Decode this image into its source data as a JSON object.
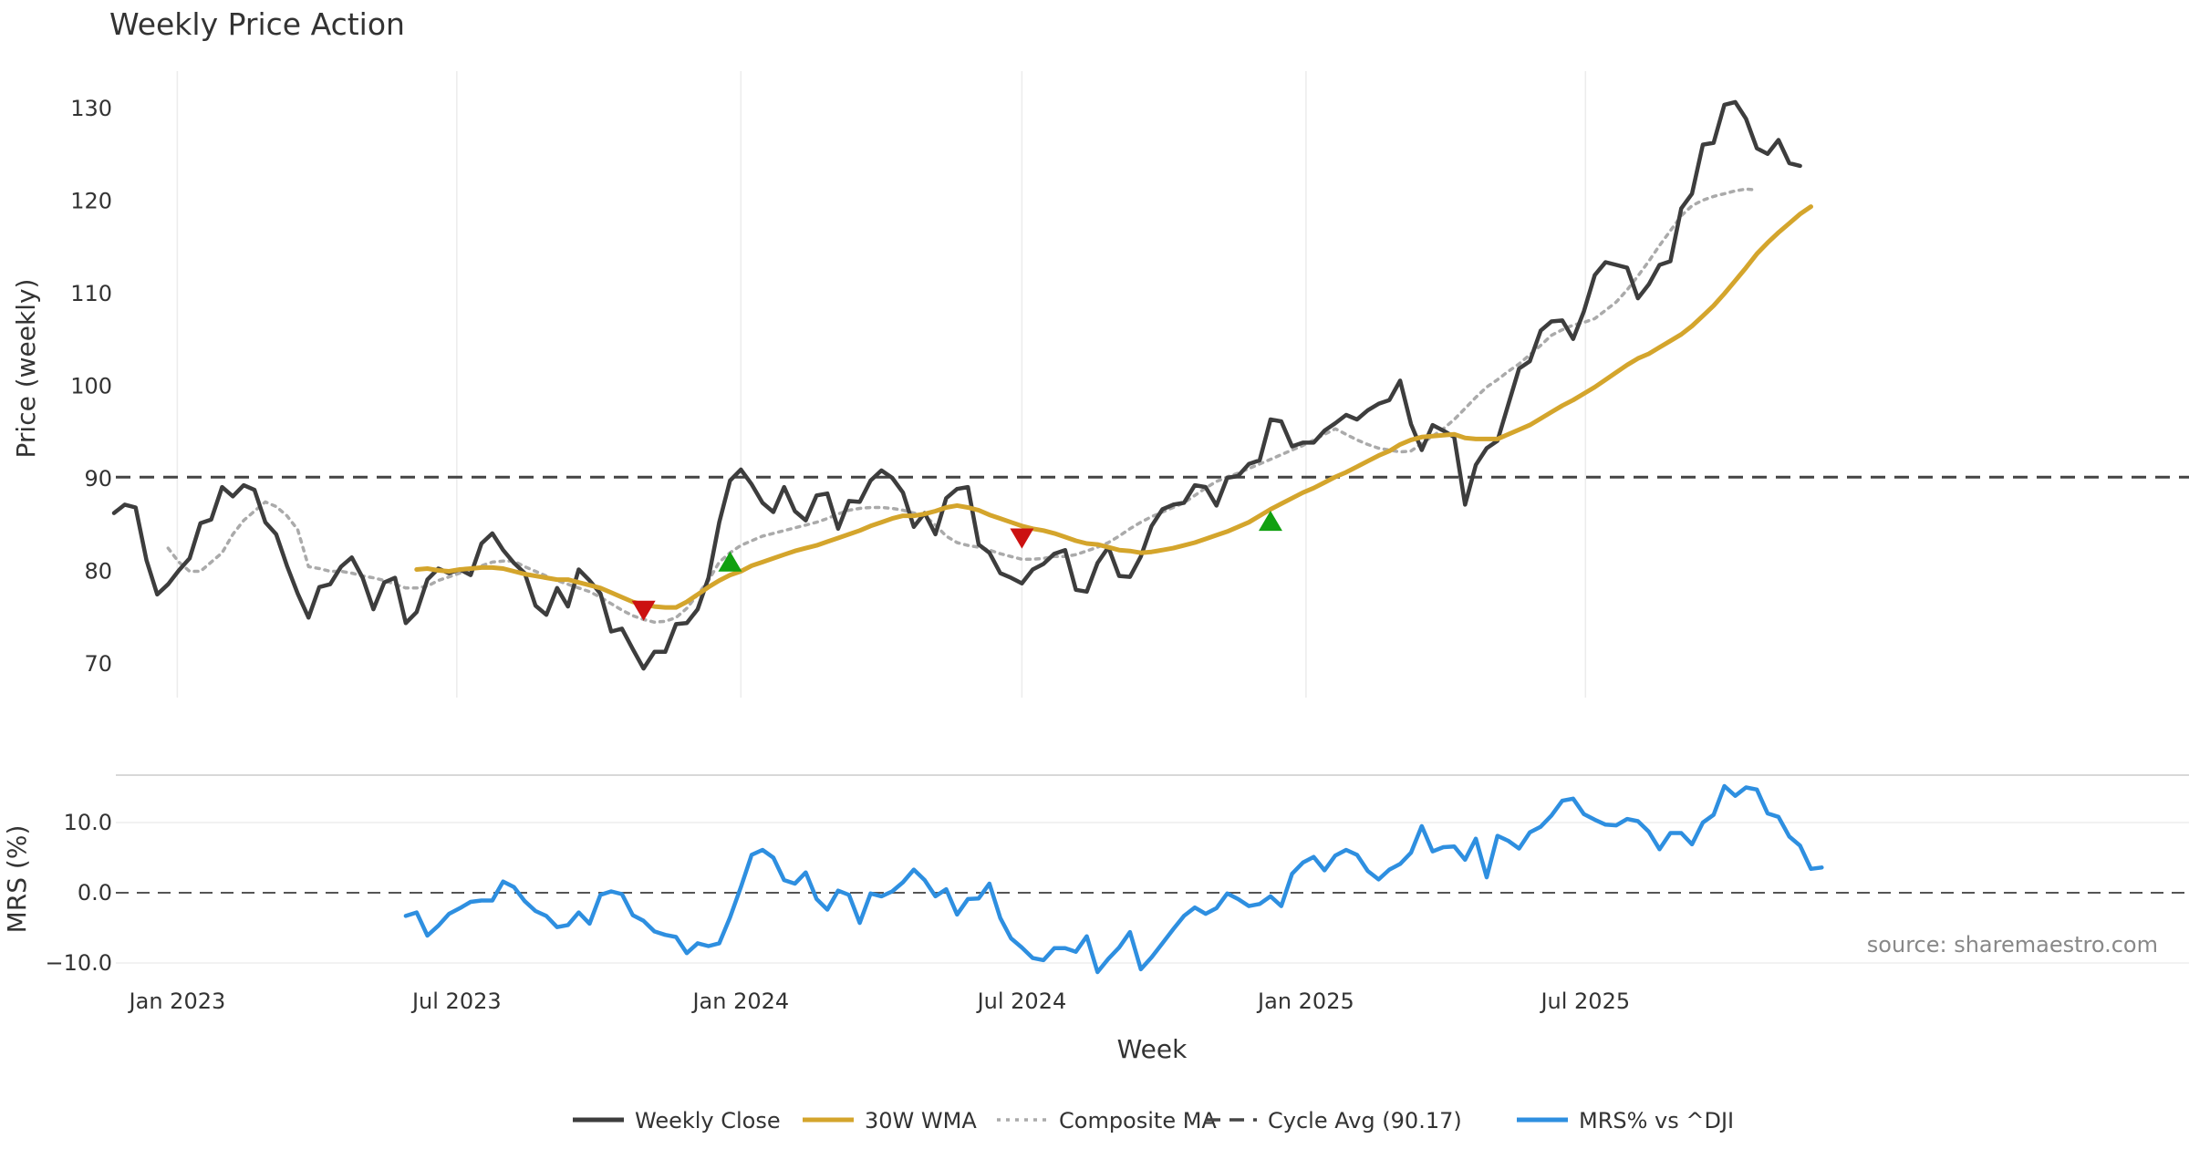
{
  "chart_data": [
    {
      "type": "line",
      "title": "Weekly Price Action",
      "xlabel": "",
      "ylabel": "Price (weekly)",
      "ylim": [
        65,
        134
      ],
      "yticks": [
        "70",
        "80",
        "90",
        "100",
        "110",
        "120",
        "130"
      ],
      "x_tick_labels": [
        "Jan 2023",
        "Jul 2023",
        "Jan 2024",
        "Jul 2024",
        "Jan 2025",
        "Jul 2025"
      ],
      "x_start_week": "2022-11-21",
      "cycle_avg": 90.17,
      "series": [
        {
          "name": "Weekly Close",
          "color": "#3d3d3d",
          "start_index": 0,
          "values": [
            86.3,
            87.2,
            86.9,
            81.2,
            77.5,
            78.6,
            80.1,
            81.4,
            85.2,
            85.6,
            89.1,
            88.1,
            89.3,
            88.8,
            85.3,
            84.0,
            80.6,
            77.6,
            75.0,
            78.3,
            78.6,
            80.5,
            81.5,
            79.3,
            75.9,
            78.8,
            79.3,
            74.4,
            75.6,
            79.1,
            80.3,
            79.8,
            80.2,
            79.6,
            83.0,
            84.1,
            82.3,
            80.9,
            79.8,
            76.3,
            75.3,
            78.2,
            76.2,
            80.2,
            79.0,
            77.6,
            73.5,
            73.8,
            71.6,
            69.5,
            71.3,
            71.3,
            74.3,
            74.4,
            75.9,
            79.3,
            85.3,
            89.8,
            91.0,
            89.4,
            87.4,
            86.4,
            89.1,
            86.5,
            85.5,
            88.2,
            88.4,
            84.6,
            87.6,
            87.5,
            89.8,
            90.9,
            90.1,
            88.5,
            84.8,
            86.3,
            84.0,
            87.9,
            88.9,
            89.1,
            82.9,
            82.0,
            79.8,
            79.3,
            78.7,
            80.2,
            80.8,
            81.9,
            82.3,
            78.0,
            77.8,
            80.9,
            82.6,
            79.5,
            79.4,
            81.6,
            84.9,
            86.7,
            87.2,
            87.4,
            89.3,
            89.1,
            87.1,
            90.1,
            90.3,
            91.6,
            92.0,
            96.4,
            96.2,
            93.5,
            93.9,
            93.9,
            95.2,
            96.0,
            96.9,
            96.4,
            97.4,
            98.1,
            98.5,
            100.6,
            95.9,
            93.1,
            95.8,
            95.2,
            94.5,
            87.2,
            91.5,
            93.3,
            94.1,
            98.0,
            101.9,
            102.7,
            106.0,
            107.0,
            107.1,
            105.1,
            108.1,
            112.0,
            113.4,
            113.1,
            112.8,
            109.5,
            111.0,
            113.1,
            113.5,
            119.2,
            120.8,
            126.1,
            126.3,
            130.4,
            130.7,
            128.9,
            125.7,
            125.1,
            126.6,
            124.1,
            123.8
          ]
        },
        {
          "name": "30W WMA",
          "color": "#d4a52c",
          "start_index": 28,
          "values": [
            80.2,
            80.3,
            80.1,
            80.0,
            80.2,
            80.3,
            80.4,
            80.4,
            80.3,
            80.0,
            79.7,
            79.5,
            79.3,
            79.1,
            79.1,
            78.8,
            78.5,
            78.2,
            77.7,
            77.2,
            76.7,
            76.4,
            76.2,
            76.1,
            76.1,
            76.7,
            77.5,
            78.3,
            79.0,
            79.6,
            80.0,
            80.6,
            81.0,
            81.4,
            81.8,
            82.2,
            82.5,
            82.8,
            83.2,
            83.6,
            84.0,
            84.4,
            84.9,
            85.3,
            85.7,
            86.0,
            86.0,
            86.2,
            86.5,
            86.9,
            87.1,
            86.9,
            86.6,
            86.1,
            85.7,
            85.3,
            84.9,
            84.6,
            84.4,
            84.1,
            83.7,
            83.3,
            83.0,
            82.9,
            82.6,
            82.3,
            82.2,
            82.0,
            82.1,
            82.3,
            82.5,
            82.8,
            83.1,
            83.5,
            83.9,
            84.3,
            84.8,
            85.3,
            86.0,
            86.7,
            87.3,
            87.9,
            88.5,
            89.0,
            89.6,
            90.2,
            90.7,
            91.3,
            91.9,
            92.5,
            93.0,
            93.7,
            94.2,
            94.5,
            94.6,
            94.7,
            94.8,
            94.4,
            94.3,
            94.3,
            94.3,
            94.8,
            95.3,
            95.8,
            96.5,
            97.2,
            97.9,
            98.5,
            99.2,
            99.9,
            100.7,
            101.5,
            102.3,
            103.0,
            103.5,
            104.2,
            104.9,
            105.6,
            106.5,
            107.6,
            108.7,
            110.0,
            111.4,
            112.8,
            114.3,
            115.5,
            116.6,
            117.6,
            118.6,
            119.4
          ]
        },
        {
          "name": "Composite MA",
          "color": "#aaaaaa",
          "start_index": 5,
          "values": [
            82.5,
            81.0,
            80.0,
            80.0,
            81.0,
            82.0,
            84.0,
            85.5,
            86.5,
            87.5,
            87.0,
            86.0,
            84.5,
            80.5,
            80.3,
            80.0,
            80.0,
            79.8,
            79.5,
            79.3,
            79.0,
            78.6,
            78.2,
            78.2,
            78.4,
            79.0,
            79.4,
            79.8,
            80.1,
            80.6,
            81.0,
            81.1,
            81.1,
            80.5,
            80.0,
            79.5,
            79.0,
            78.6,
            78.2,
            77.8,
            77.2,
            76.5,
            75.8,
            75.2,
            74.8,
            74.5,
            74.6,
            75.0,
            76.0,
            77.5,
            79.0,
            81.0,
            82.0,
            82.8,
            83.3,
            83.8,
            84.1,
            84.4,
            84.7,
            85.0,
            85.3,
            85.7,
            86.2,
            86.6,
            86.8,
            86.9,
            86.9,
            86.8,
            86.6,
            86.3,
            86.0,
            85.0,
            83.8,
            83.1,
            82.8,
            82.6,
            82.3,
            81.9,
            81.6,
            81.3,
            81.3,
            81.4,
            81.6,
            81.6,
            81.8,
            82.2,
            82.6,
            83.1,
            83.8,
            84.6,
            85.3,
            85.9,
            86.4,
            86.9,
            87.4,
            88.2,
            89.0,
            89.7,
            90.2,
            90.6,
            91.1,
            91.6,
            92.1,
            92.6,
            93.1,
            93.6,
            94.2,
            94.8,
            95.4,
            94.8,
            94.2,
            93.7,
            93.3,
            93.1,
            92.9,
            93.0,
            93.8,
            94.6,
            95.4,
            96.4,
            97.6,
            98.8,
            99.9,
            100.7,
            101.6,
            102.4,
            103.4,
            104.4,
            105.5,
            106.1,
            106.6,
            106.9,
            107.3,
            108.2,
            109.1,
            110.4,
            111.9,
            113.5,
            115.2,
            116.8,
            118.4,
            119.5,
            120.1,
            120.5,
            120.8,
            121.1,
            121.3,
            121.2
          ]
        }
      ],
      "markers": [
        {
          "type": "sell",
          "index": 49,
          "value": 75.8,
          "color": "#cc1111"
        },
        {
          "type": "buy",
          "index": 57,
          "value": 81.0,
          "color": "#11a011"
        },
        {
          "type": "sell",
          "index": 84,
          "value": 83.6,
          "color": "#cc1111"
        },
        {
          "type": "buy",
          "index": 107,
          "value": 85.4,
          "color": "#11a011"
        }
      ]
    },
    {
      "type": "line",
      "xlabel": "Week",
      "ylabel": "MRS (%)",
      "ylim": [
        -13,
        16
      ],
      "yticks": [
        "−10.0",
        "0.0",
        "10.0"
      ],
      "series": [
        {
          "name": "MRS% vs ^DJI",
          "color": "#2e8fe0",
          "start_index": 27,
          "values": [
            -3.3,
            -2.8,
            -6.1,
            -4.7,
            -3.0,
            -2.2,
            -1.3,
            -1.1,
            -1.1,
            1.6,
            0.8,
            -1.2,
            -2.6,
            -3.3,
            -4.9,
            -4.6,
            -2.8,
            -4.4,
            -0.3,
            0.2,
            -0.2,
            -3.2,
            -4.0,
            -5.5,
            -6.0,
            -6.3,
            -8.6,
            -7.2,
            -7.6,
            -7.2,
            -3.5,
            0.8,
            5.4,
            6.1,
            5.0,
            1.8,
            1.3,
            2.9,
            -0.9,
            -2.4,
            0.3,
            -0.3,
            -4.3,
            -0.1,
            -0.5,
            0.2,
            1.5,
            3.3,
            1.8,
            -0.5,
            0.5,
            -3.1,
            -0.9,
            -0.8,
            1.3,
            -3.6,
            -6.5,
            -7.8,
            -9.3,
            -9.6,
            -7.9,
            -7.9,
            -8.4,
            -6.2,
            -11.3,
            -9.4,
            -7.8,
            -5.6,
            -10.9,
            -9.2,
            -7.2,
            -5.2,
            -3.3,
            -2.1,
            -3.0,
            -2.2,
            -0.1,
            -0.9,
            -1.9,
            -1.6,
            -0.5,
            -1.9,
            2.7,
            4.3,
            5.1,
            3.2,
            5.3,
            6.1,
            5.4,
            3.1,
            1.9,
            3.3,
            4.1,
            5.7,
            9.5,
            5.9,
            6.5,
            6.6,
            4.7,
            7.7,
            2.2,
            8.1,
            7.4,
            6.3,
            8.6,
            9.4,
            11.0,
            13.1,
            13.4,
            11.2,
            10.4,
            9.7,
            9.6,
            10.5,
            10.2,
            8.7,
            6.2,
            8.5,
            8.5,
            6.9,
            10.0,
            11.1,
            15.2,
            13.8,
            15.0,
            14.7,
            11.3,
            10.8,
            8.0,
            6.7,
            3.4,
            3.6
          ]
        }
      ],
      "annotations": [
        "source: sharemaestro.com"
      ]
    }
  ],
  "legend": [
    {
      "label": "Weekly Close",
      "style": "solid",
      "color": "#3d3d3d"
    },
    {
      "label": "30W WMA",
      "style": "solid",
      "color": "#d4a52c"
    },
    {
      "label": "Composite MA",
      "style": "dotted",
      "color": "#aaaaaa"
    },
    {
      "label": "Cycle Avg (90.17)",
      "style": "dashed",
      "color": "#444444"
    },
    {
      "label": "MRS% vs ^DJI",
      "style": "solid",
      "color": "#2e8fe0"
    }
  ]
}
